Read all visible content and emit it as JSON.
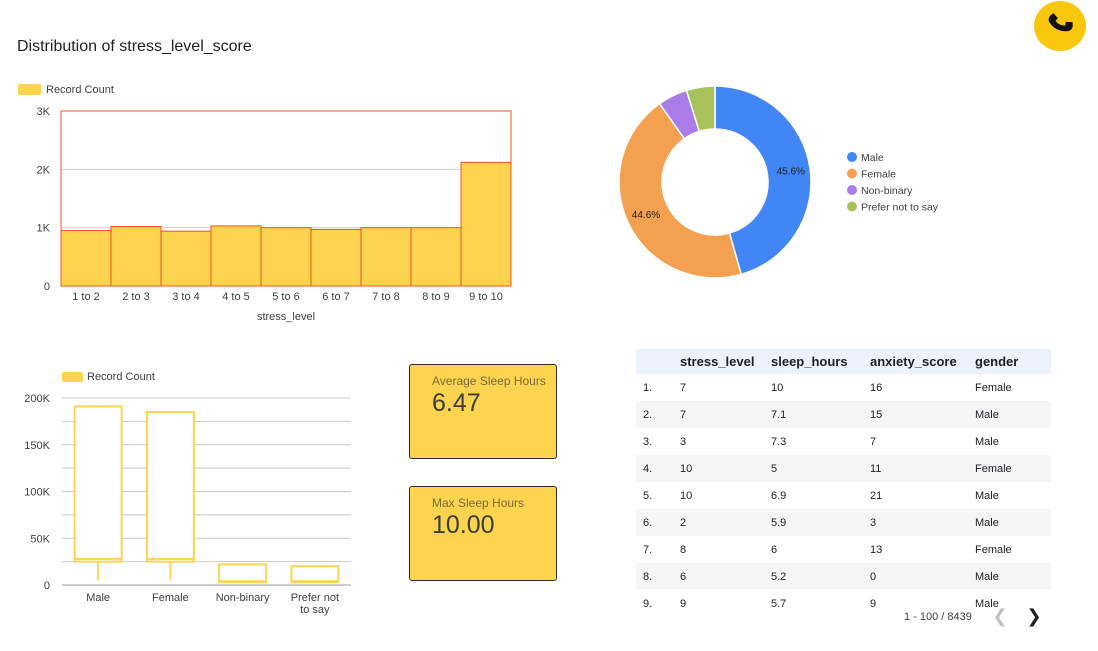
{
  "title": "Distribution of stress_level_score",
  "logo": {
    "icon": "phone-icon",
    "color": "#f9c80e"
  },
  "chart_data": [
    {
      "type": "bar",
      "legend": "Record Count",
      "categories": [
        "1 to 2",
        "2 to 3",
        "3 to 4",
        "4 to 5",
        "5 to 6",
        "6 to 7",
        "7 to 8",
        "8 to 9",
        "9 to 10"
      ],
      "values": [
        950,
        1020,
        940,
        1030,
        1000,
        970,
        1000,
        1000,
        2120
      ],
      "xlabel": "stress_level",
      "ylabel": "",
      "ylim": [
        0,
        3000
      ],
      "yticks": [
        "0",
        "1K",
        "2K",
        "3K"
      ],
      "bar_color": "#fdd44f",
      "border_color": "#f4511e",
      "grid": true,
      "legend_position": "top-left"
    },
    {
      "type": "pie",
      "donut": true,
      "labels": [
        "Male",
        "Female",
        "Non-binary",
        "Prefer not to say"
      ],
      "values": [
        45.6,
        44.6,
        5.0,
        4.8
      ],
      "value_labels": [
        "45.6%",
        "44.6%",
        "",
        ""
      ],
      "colors": [
        "#4285f4",
        "#f4a051",
        "#a97ce8",
        "#a8c35c"
      ],
      "legend_position": "right"
    },
    {
      "type": "box",
      "legend": "Record Count",
      "categories": [
        "Male",
        "Female",
        "Non-binary",
        "Prefer not to say"
      ],
      "category_labels": [
        [
          "Male"
        ],
        [
          "Female"
        ],
        [
          "Non-binary"
        ],
        [
          "Prefer not",
          "to say"
        ]
      ],
      "boxes": [
        {
          "min": 5000,
          "q1": 25000,
          "median": 28000,
          "q3": 191000,
          "max": 191000
        },
        {
          "min": 5000,
          "q1": 25000,
          "median": 28000,
          "q3": 185000,
          "max": 185000
        },
        {
          "min": 2000,
          "q1": 3000,
          "median": 4000,
          "q3": 22000,
          "max": 22000
        },
        {
          "min": 2000,
          "q1": 3000,
          "median": 4000,
          "q3": 20000,
          "max": 20000
        }
      ],
      "ylim": [
        0,
        200000
      ],
      "yticks": [
        "0",
        "50K",
        "100K",
        "150K",
        "200K"
      ],
      "color": "#fdd44f",
      "grid": true,
      "legend_position": "top-left"
    }
  ],
  "scorecards": [
    {
      "label": "Average Sleep Hours",
      "value": "6.47"
    },
    {
      "label": "Max Sleep Hours",
      "value": "10.00"
    }
  ],
  "table": {
    "columns": [
      "",
      "stress_level",
      "sleep_hours",
      "anxiety_score",
      "gender"
    ],
    "rows": [
      [
        "1.",
        "7",
        "10",
        "16",
        "Female"
      ],
      [
        "2.",
        "7",
        "7.1",
        "15",
        "Male"
      ],
      [
        "3.",
        "3",
        "7.3",
        "7",
        "Male"
      ],
      [
        "4.",
        "10",
        "5",
        "11",
        "Female"
      ],
      [
        "5.",
        "10",
        "6.9",
        "21",
        "Male"
      ],
      [
        "6.",
        "2",
        "5.9",
        "3",
        "Male"
      ],
      [
        "7.",
        "8",
        "6",
        "13",
        "Female"
      ],
      [
        "8.",
        "6",
        "5.2",
        "0",
        "Male"
      ],
      [
        "9.",
        "9",
        "5.7",
        "9",
        "Male"
      ]
    ]
  },
  "pagination": {
    "text": "1 - 100 / 8439",
    "prev_icon": "chevron-left-icon",
    "next_icon": "chevron-right-icon"
  }
}
